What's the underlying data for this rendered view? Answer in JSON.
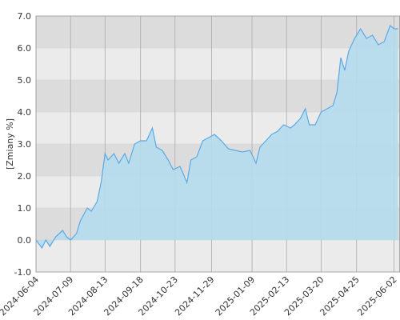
{
  "chart_data": {
    "type": "area",
    "y_label": "[Zmiany %]",
    "color": "#5aa9e6",
    "fill": "#b5dcee",
    "band_colors": [
      "#dcdcdc",
      "#ebebeb"
    ],
    "x": [
      "2024-06-04",
      "2024-06-10",
      "2024-06-14",
      "2024-06-18",
      "2024-06-24",
      "2024-07-01",
      "2024-07-05",
      "2024-07-09",
      "2024-07-15",
      "2024-07-19",
      "2024-07-26",
      "2024-07-30",
      "2024-08-05",
      "2024-08-09",
      "2024-08-13",
      "2024-08-16",
      "2024-08-22",
      "2024-08-27",
      "2024-09-02",
      "2024-09-06",
      "2024-09-12",
      "2024-09-18",
      "2024-09-24",
      "2024-09-30",
      "2024-10-04",
      "2024-10-10",
      "2024-10-16",
      "2024-10-21",
      "2024-10-28",
      "2024-11-04",
      "2024-11-08",
      "2024-11-14",
      "2024-11-20",
      "2024-11-26",
      "2024-12-02",
      "2024-12-09",
      "2024-12-16",
      "2024-12-23",
      "2024-12-30",
      "2025-01-07",
      "2025-01-13",
      "2025-01-17",
      "2025-01-23",
      "2025-01-29",
      "2025-02-04",
      "2025-02-10",
      "2025-02-17",
      "2025-02-21",
      "2025-02-27",
      "2025-03-04",
      "2025-03-08",
      "2025-03-14",
      "2025-03-20",
      "2025-03-26",
      "2025-04-01",
      "2025-04-05",
      "2025-04-09",
      "2025-04-13",
      "2025-04-17",
      "2025-04-23",
      "2025-04-29",
      "2025-05-05",
      "2025-05-11",
      "2025-05-17",
      "2025-05-23",
      "2025-05-29",
      "2025-06-02",
      "2025-06-06"
    ],
    "values": [
      0,
      -0.25,
      0,
      -0.2,
      0.1,
      0.3,
      0.1,
      0,
      0.2,
      0.6,
      1.0,
      0.9,
      1.2,
      1.8,
      2.7,
      2.5,
      2.7,
      2.4,
      2.7,
      2.4,
      3.0,
      3.1,
      3.1,
      3.5,
      2.9,
      2.8,
      2.5,
      2.2,
      2.3,
      1.8,
      2.5,
      2.6,
      3.1,
      3.2,
      3.3,
      3.1,
      2.85,
      2.8,
      2.75,
      2.8,
      2.4,
      2.9,
      3.1,
      3.3,
      3.4,
      3.6,
      3.5,
      3.6,
      3.8,
      4.1,
      3.6,
      3.6,
      4.0,
      4.1,
      4.2,
      4.6,
      5.7,
      5.3,
      5.9,
      6.3,
      6.6,
      6.3,
      6.4,
      6.1,
      6.2,
      6.7,
      6.6,
      6.6
    ],
    "xlim": [
      "2024-06-04",
      "2025-06-08"
    ],
    "xticks": [
      "2024-06-04",
      "2024-07-09",
      "2024-08-13",
      "2024-09-18",
      "2024-10-23",
      "2024-11-29",
      "2025-01-09",
      "2025-02-13",
      "2025-03-20",
      "2025-04-25",
      "2025-06-02"
    ],
    "ylim": [
      -1,
      7
    ],
    "yticks": [
      {
        "value": -1,
        "label": "-1.0"
      },
      {
        "value": 0,
        "label": "0.0"
      },
      {
        "value": 1,
        "label": "1.0"
      },
      {
        "value": 2,
        "label": "2.0"
      },
      {
        "value": 3,
        "label": "3.0"
      },
      {
        "value": 4,
        "label": "4.0"
      },
      {
        "value": 5,
        "label": "5.0"
      },
      {
        "value": 6,
        "label": "6.0"
      },
      {
        "value": 7,
        "label": "7.0"
      }
    ],
    "grid": true
  }
}
